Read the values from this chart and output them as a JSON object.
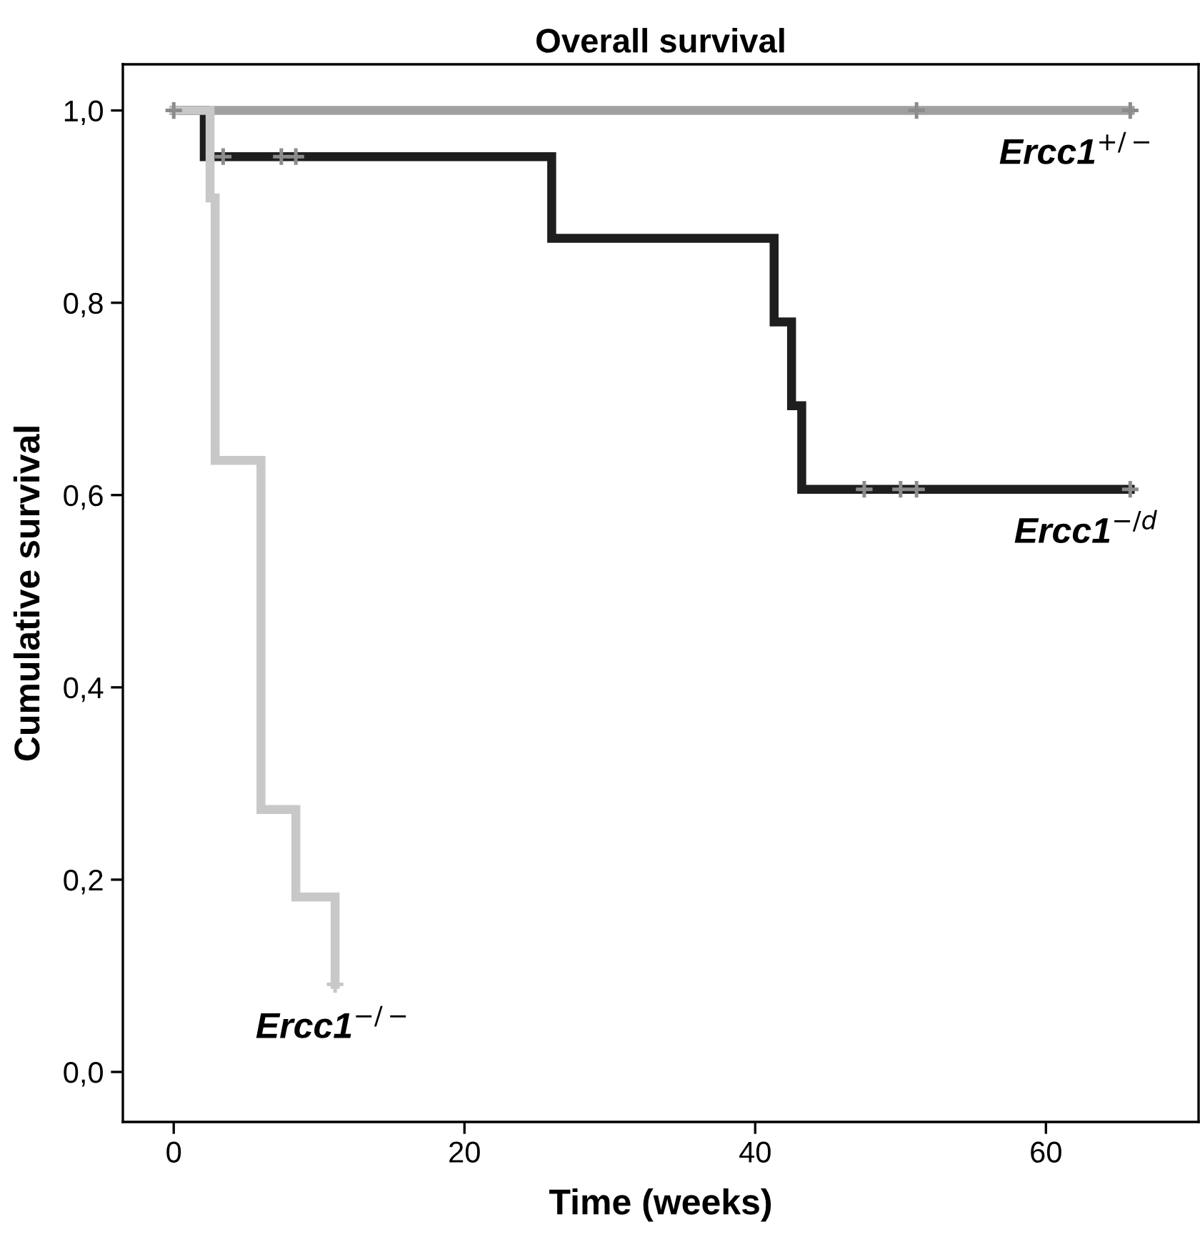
{
  "chart_data": {
    "type": "step",
    "title": "Overall survival",
    "xlabel": "Time (weeks)",
    "ylabel": "Cumulative survival",
    "xlim": [
      -3.5,
      70.5
    ],
    "xticks": [
      0,
      20,
      40,
      60
    ],
    "ylim": [
      -0.052,
      1.048
    ],
    "yticks": [
      {
        "value": 0.0,
        "label": "0,0"
      },
      {
        "value": 0.2,
        "label": "0,2"
      },
      {
        "value": 0.4,
        "label": "0,4"
      },
      {
        "value": 0.6,
        "label": "0,6"
      },
      {
        "value": 0.8,
        "label": "0,8"
      },
      {
        "value": 1.0,
        "label": "1,0"
      }
    ],
    "grid": false,
    "line_style": "solid",
    "series": [
      {
        "name": "Ercc1$^{+/−}$",
        "color": "#a0a0a0",
        "x": [
          0,
          65.8
        ],
        "values": [
          1.0,
          1.0
        ]
      },
      {
        "name": "Ercc1$^{−/d}$",
        "color": "#1e1e1e",
        "x": [
          0,
          2.1,
          26.0,
          41.3,
          42.5,
          43.2,
          65.8
        ],
        "values": [
          1.0,
          0.952,
          0.867,
          0.78,
          0.693,
          0.606,
          0.606
        ]
      },
      {
        "name": "Ercc1$^{−/−}$",
        "color": "#c8c8c8",
        "x": [
          0,
          2.5,
          2.85,
          6.0,
          8.4,
          11.1
        ],
        "values": [
          1.0,
          0.909,
          0.636,
          0.273,
          0.182,
          0.091
        ]
      },
      {
        "type": "scatter",
        "marker": "cross",
        "color": "#8c8c8c",
        "x": [
          0,
          51.1,
          65.8
        ],
        "values": [
          1.0,
          1.0,
          1.0
        ]
      },
      {
        "type": "scatter",
        "marker": "cross",
        "color": "#8c8c8c",
        "x": [
          3.4,
          7.4,
          8.4,
          47.5,
          50.0,
          51.1,
          65.8
        ],
        "values": [
          0.952,
          0.952,
          0.952,
          0.606,
          0.606,
          0.606,
          0.606
        ]
      },
      {
        "type": "scatter",
        "marker": "cross",
        "color": "#c8c8c8",
        "x": [
          11.1
        ],
        "values": [
          0.091
        ]
      }
    ]
  }
}
